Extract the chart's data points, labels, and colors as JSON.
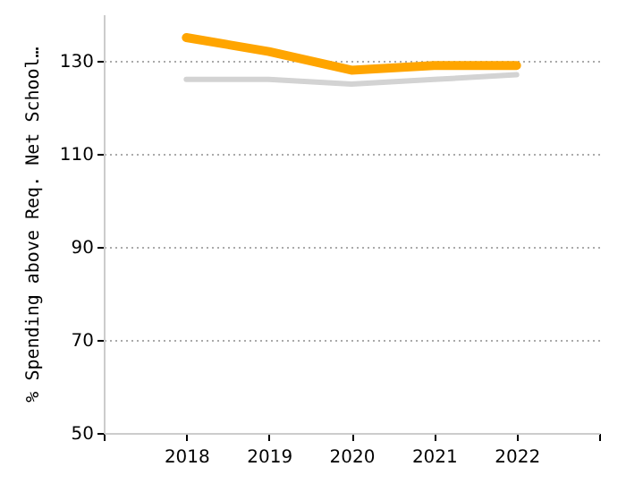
{
  "chart_data": {
    "type": "line",
    "ylabel": "% Spending above Req. Net School…",
    "x": [
      2018,
      2019,
      2020,
      2021,
      2022
    ],
    "xlim": [
      2017,
      2023
    ],
    "xticks": [
      {
        "value": 2017,
        "label": null
      },
      2018,
      2019,
      2020,
      2021,
      2022,
      {
        "value": 2023,
        "label": null
      }
    ],
    "ylim": [
      50,
      140
    ],
    "yticks": [
      50,
      70,
      90,
      110,
      130
    ],
    "grid": "y",
    "marker": "none",
    "line_style": "solid",
    "series": [
      {
        "color": "#d3d3d3",
        "values": [
          126,
          126,
          125,
          126,
          127
        ]
      },
      {
        "color": "#ffa500",
        "values": [
          135,
          132,
          128,
          129,
          129
        ]
      }
    ]
  }
}
